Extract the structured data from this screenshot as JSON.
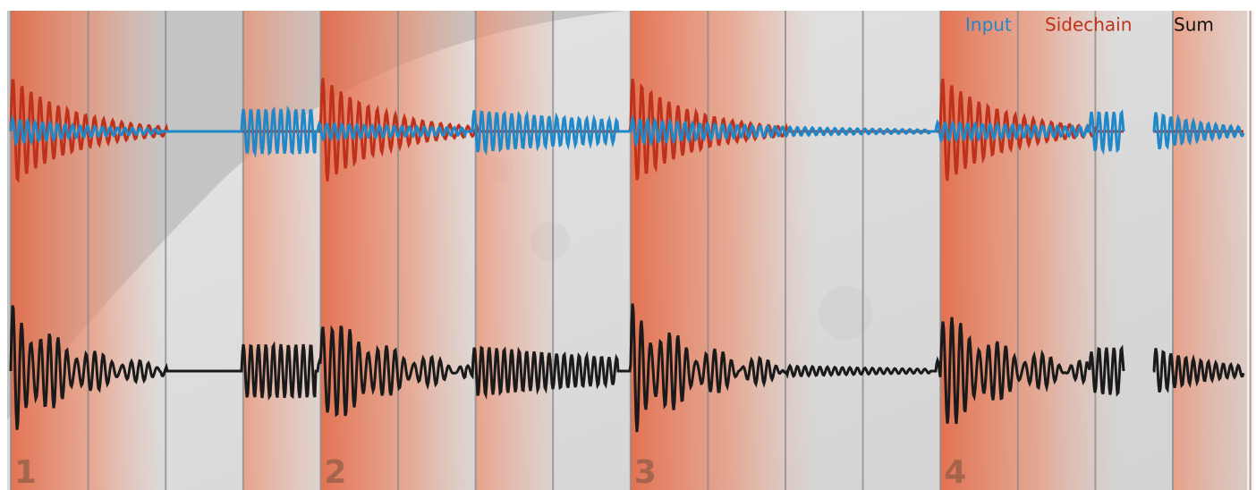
{
  "legend": {
    "items": [
      "Input",
      "Sidechain",
      "Sum"
    ]
  },
  "bars": {
    "labels": [
      "1",
      "2",
      "3",
      "4"
    ]
  }
}
